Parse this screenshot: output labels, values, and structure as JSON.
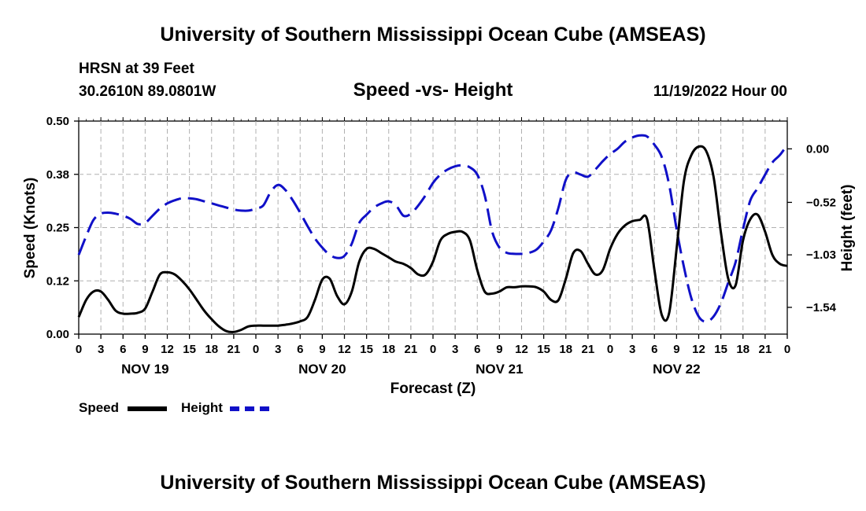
{
  "header": {
    "title": "University of Southern Mississippi Ocean Cube (AMSEAS)",
    "station": "HRSN at 39 Feet",
    "location": "30.2610N  89.0801W",
    "chart_title": "Speed -vs- Height",
    "datetime": "11/19/2022 Hour 00"
  },
  "legend": {
    "speed_label": "Speed",
    "height_label": "Height"
  },
  "footer": {
    "title": "University of Southern Mississippi Ocean Cube (AMSEAS)"
  },
  "colors": {
    "speed": "#000000",
    "height": "#1010c8",
    "grid": "#b0b0b0"
  },
  "chart_data": {
    "type": "line",
    "title": "Speed -vs- Height",
    "xlabel": "Forecast (Z)",
    "ylabel_left": "Speed (Knots)",
    "ylabel_right": "Height (feet)",
    "x_range": [
      0,
      96
    ],
    "x_ticks": [
      {
        "x": 0,
        "label": "0"
      },
      {
        "x": 3,
        "label": "3"
      },
      {
        "x": 6,
        "label": "6"
      },
      {
        "x": 9,
        "label": "9"
      },
      {
        "x": 12,
        "label": "12"
      },
      {
        "x": 15,
        "label": "15"
      },
      {
        "x": 18,
        "label": "18"
      },
      {
        "x": 21,
        "label": "21"
      },
      {
        "x": 24,
        "label": "0"
      },
      {
        "x": 27,
        "label": "3"
      },
      {
        "x": 30,
        "label": "6"
      },
      {
        "x": 33,
        "label": "9"
      },
      {
        "x": 36,
        "label": "12"
      },
      {
        "x": 39,
        "label": "15"
      },
      {
        "x": 42,
        "label": "18"
      },
      {
        "x": 45,
        "label": "21"
      },
      {
        "x": 48,
        "label": "0"
      },
      {
        "x": 51,
        "label": "3"
      },
      {
        "x": 54,
        "label": "6"
      },
      {
        "x": 57,
        "label": "9"
      },
      {
        "x": 60,
        "label": "12"
      },
      {
        "x": 63,
        "label": "15"
      },
      {
        "x": 66,
        "label": "18"
      },
      {
        "x": 69,
        "label": "21"
      },
      {
        "x": 72,
        "label": "0"
      },
      {
        "x": 75,
        "label": "3"
      },
      {
        "x": 78,
        "label": "6"
      },
      {
        "x": 81,
        "label": "9"
      },
      {
        "x": 84,
        "label": "12"
      },
      {
        "x": 87,
        "label": "15"
      },
      {
        "x": 90,
        "label": "18"
      },
      {
        "x": 93,
        "label": "21"
      },
      {
        "x": 96,
        "label": "0"
      }
    ],
    "day_labels": [
      {
        "x": 9,
        "label": "NOV 19"
      },
      {
        "x": 33,
        "label": "NOV 20"
      },
      {
        "x": 57,
        "label": "NOV 21"
      },
      {
        "x": 81,
        "label": "NOV 22"
      }
    ],
    "y_left": {
      "range": [
        0,
        0.5
      ],
      "ticks": [
        {
          "v": 0.0,
          "label": "0.00"
        },
        {
          "v": 0.125,
          "label": "0.12"
        },
        {
          "v": 0.25,
          "label": "0.25"
        },
        {
          "v": 0.375,
          "label": "0.38"
        },
        {
          "v": 0.5,
          "label": "0.50"
        }
      ]
    },
    "y_right": {
      "range": [
        -1.8,
        0.27
      ],
      "ticks": [
        {
          "v": 0.0,
          "label": "0.00"
        },
        {
          "v": -0.52,
          "label": "-0.52"
        },
        {
          "v": -1.03,
          "label": "-1.03"
        },
        {
          "v": -1.54,
          "label": "-1.54"
        }
      ]
    },
    "series": [
      {
        "name": "Speed",
        "axis": "left",
        "style": "solid",
        "x": [
          0,
          1,
          2,
          3,
          4,
          5,
          6,
          7,
          8,
          9,
          10,
          11,
          12,
          13,
          14,
          15,
          16,
          17,
          18,
          19,
          20,
          21,
          22,
          23,
          24,
          25,
          26,
          27,
          28,
          29,
          30,
          31,
          32,
          33,
          34,
          35,
          36,
          37,
          38,
          39,
          40,
          41,
          42,
          43,
          44,
          45,
          46,
          47,
          48,
          49,
          50,
          51,
          52,
          53,
          54,
          55,
          56,
          57,
          58,
          59,
          60,
          61,
          62,
          63,
          64,
          65,
          66,
          67,
          68,
          69,
          70,
          71,
          72,
          73,
          74,
          75,
          76,
          77,
          78,
          79,
          80,
          81,
          82,
          83,
          84,
          85,
          86,
          87,
          88,
          89,
          90,
          91,
          92,
          93,
          94,
          95,
          96
        ],
        "values": [
          0.04,
          0.08,
          0.1,
          0.1,
          0.08,
          0.055,
          0.048,
          0.048,
          0.05,
          0.06,
          0.1,
          0.14,
          0.145,
          0.14,
          0.125,
          0.105,
          0.08,
          0.055,
          0.035,
          0.018,
          0.007,
          0.005,
          0.01,
          0.018,
          0.02,
          0.02,
          0.02,
          0.02,
          0.022,
          0.025,
          0.03,
          0.04,
          0.08,
          0.128,
          0.13,
          0.09,
          0.07,
          0.1,
          0.17,
          0.2,
          0.2,
          0.19,
          0.18,
          0.17,
          0.165,
          0.155,
          0.14,
          0.14,
          0.17,
          0.22,
          0.235,
          0.24,
          0.24,
          0.22,
          0.15,
          0.1,
          0.095,
          0.1,
          0.11,
          0.11,
          0.112,
          0.112,
          0.11,
          0.1,
          0.08,
          0.08,
          0.13,
          0.19,
          0.195,
          0.165,
          0.14,
          0.15,
          0.2,
          0.235,
          0.255,
          0.265,
          0.268,
          0.27,
          0.15,
          0.045,
          0.05,
          0.2,
          0.36,
          0.42,
          0.44,
          0.43,
          0.37,
          0.24,
          0.13,
          0.115,
          0.22,
          0.27,
          0.28,
          0.24,
          0.185,
          0.165,
          0.16
        ]
      },
      {
        "name": "Height",
        "axis": "right",
        "style": "dashed",
        "x": [
          0,
          1,
          2,
          3,
          4,
          5,
          6,
          7,
          8,
          9,
          10,
          11,
          12,
          13,
          14,
          15,
          16,
          17,
          18,
          19,
          20,
          21,
          22,
          23,
          24,
          25,
          26,
          27,
          28,
          29,
          30,
          31,
          32,
          33,
          34,
          35,
          36,
          37,
          38,
          39,
          40,
          41,
          42,
          43,
          44,
          45,
          46,
          47,
          48,
          49,
          50,
          51,
          52,
          53,
          54,
          55,
          56,
          57,
          58,
          59,
          60,
          61,
          62,
          63,
          64,
          65,
          66,
          67,
          68,
          69,
          70,
          71,
          72,
          73,
          74,
          75,
          76,
          77,
          78,
          79,
          80,
          81,
          82,
          83,
          84,
          85,
          86,
          87,
          88,
          89,
          90,
          91,
          92,
          93,
          94,
          95,
          96
        ],
        "values": [
          -1.03,
          -0.85,
          -0.69,
          -0.63,
          -0.62,
          -0.63,
          -0.65,
          -0.68,
          -0.73,
          -0.72,
          -0.65,
          -0.58,
          -0.53,
          -0.5,
          -0.48,
          -0.48,
          -0.49,
          -0.51,
          -0.53,
          -0.55,
          -0.57,
          -0.59,
          -0.6,
          -0.6,
          -0.58,
          -0.55,
          -0.42,
          -0.35,
          -0.4,
          -0.5,
          -0.62,
          -0.75,
          -0.87,
          -0.96,
          -1.03,
          -1.06,
          -1.04,
          -0.92,
          -0.72,
          -0.64,
          -0.57,
          -0.53,
          -0.51,
          -0.55,
          -0.65,
          -0.63,
          -0.55,
          -0.45,
          -0.33,
          -0.25,
          -0.2,
          -0.17,
          -0.16,
          -0.18,
          -0.25,
          -0.45,
          -0.8,
          -0.96,
          -1.01,
          -1.02,
          -1.02,
          -1.01,
          -0.98,
          -0.9,
          -0.79,
          -0.57,
          -0.3,
          -0.23,
          -0.25,
          -0.27,
          -0.2,
          -0.12,
          -0.05,
          0.0,
          0.07,
          0.11,
          0.13,
          0.12,
          0.04,
          -0.08,
          -0.35,
          -0.78,
          -1.15,
          -1.45,
          -1.63,
          -1.68,
          -1.63,
          -1.5,
          -1.3,
          -1.1,
          -0.78,
          -0.5,
          -0.38,
          -0.25,
          -0.13,
          -0.06,
          0.04
        ]
      }
    ]
  }
}
